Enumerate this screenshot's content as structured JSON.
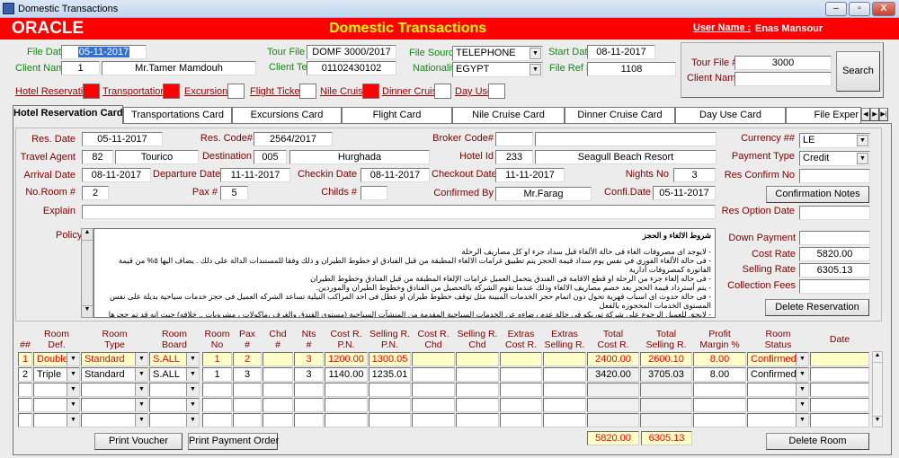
{
  "window": {
    "title": "Domestic Transactions",
    "min": "–",
    "max": "▫",
    "close": "X"
  },
  "header": {
    "logo": "ORACLE",
    "title": "Domestic Transactions",
    "user_label": "User Name :",
    "user_name": "Enas Mansour"
  },
  "file": {
    "file_date_label": "File Date",
    "file_date": "05-11-2017",
    "client_name_label": "Client Name",
    "client_id": "1",
    "client_name": "Mr.Tamer Mamdouh",
    "tour_file_label": "Tour File #",
    "tour_file": "DOMF 3000/2017",
    "client_tel_label": "Client Tel",
    "client_tel": "01102430102",
    "file_source_label": "File Source",
    "file_source": "TELEPHONE",
    "nationality_label": "Nationality",
    "nationality": "EGYPT",
    "start_date_label": "Start Date",
    "start_date": "08-11-2017",
    "file_ref_label": "File Ref #",
    "file_ref": "1108"
  },
  "search": {
    "tour_file_label": "Tour File #",
    "tour_file": "3000",
    "client_name_label": "Client Name",
    "client_name": "",
    "button": "Search"
  },
  "services": [
    {
      "label": "Hotel Reservation",
      "checked": true
    },
    {
      "label": "Transportations",
      "checked": true
    },
    {
      "label": "Excursions",
      "checked": false
    },
    {
      "label": "Flight Tickets",
      "checked": false
    },
    {
      "label": "Nile Cruise",
      "checked": true
    },
    {
      "label": "Dinner Cruise",
      "checked": false
    },
    {
      "label": "Day Use",
      "checked": false
    }
  ],
  "tabs": [
    "Hotel Reservation Card",
    "Transportations Card",
    "Excursions Card",
    "Flight Card",
    "Nile Cruise Card",
    "Dinner Cruise Card",
    "Day Use Card",
    "File Exper"
  ],
  "card": {
    "res_date_label": "Res. Date",
    "res_date": "05-11-2017",
    "res_code_label": "Res. Code#",
    "res_code": "2564/2017",
    "broker_label": "Broker Code#",
    "broker_code": "",
    "broker_name": "",
    "currency_label": "Currency ##",
    "currency": "LE",
    "agent_label": "Travel Agent",
    "agent_id": "82",
    "agent_name": "Tourico",
    "destination_label": "Destination",
    "destination_id": "005",
    "destination_name": "Hurghada",
    "hotel_label": "Hotel Id",
    "hotel_id": "233",
    "hotel_name": "Seagull Beach Resort",
    "payment_label": "Payment Type",
    "payment": "Credit",
    "arrival_label": "Arrival Date",
    "arrival": "08-11-2017",
    "departure_label": "Departure Date",
    "departure": "11-11-2017",
    "checkin_label": "Checkin Date",
    "checkin": "08-11-2017",
    "checkout_label": "Checkout Date",
    "checkout": "11-11-2017",
    "nights_label": "Nights No",
    "nights": "3",
    "confirm_no_label": "Res Confirm No",
    "confirm_no": "",
    "rooms_label": "No.Room #",
    "rooms": "2",
    "pax_label": "Pax #",
    "pax": "5",
    "childs_label": "Childs #",
    "childs": "",
    "confirmed_by_label": "Confirmed By",
    "confirmed_by": "Mr.Farag",
    "confi_date_label": "Confi.Date",
    "confi_date": "05-11-2017",
    "confirmation_notes": "Confirmation Notes",
    "explain_label": "Explain",
    "explain": "",
    "option_date_label": "Res Option Date",
    "option_date": "",
    "policy_label": "Policy",
    "policy": [
      "شروط الالغاء و الحجز",
      "",
      "- لايوجد اى مصروفات الغاء فى حالة الألغاء قبل سداد جزء او كل مصاريف الرحلة",
      "- فى حالة الألغاء الفوري في نفس يوم سداد قيمة الحجز يتم تطبيق غرامات الالغاء المطبقة من قبل الفنادق او خطوط الطيران و ذلك وفقا للمستندات الدالة على ذلك . يضاف اليها ٥% من قيمة الفاتورة كمصروفات أدارية",
      "- فى حاله إلغاء جزء من الرحلة او قطع الاقامة فى الفندق يتحمل العميل غرامات الإلغاء المطبقة من قبل الفنادق وخطوط الطيران",
      "- يتم أسترداد قيمة الحجز بعد خصم مصاريف الالغاء وذلك عندما تقوم الشركة بالتحصيل من الفنادق وخطوط الطيران والموردين.",
      "- فى حالة حدوث اى اسباب قهرية تحول دون اتمام حجز الخدمات المبينة مثل توقف خطوط طيران او عطل فى احد المراكب النيلية تساعد الشركه العميل فى حجز خدمات سياحية بديلة على نفس المستوى الخدمات المحجوزه بالفعل",
      "- لايحق للعميل الرجوع علي شركة توريكو فى حالة عدم رضاءه عن الخدمات السياحية المقدمة من المنشآت السياحية (مستوى الفندق والغرف ،ماكولات ، مشروبات .. خلافه) حيث انه قد تم حجزها بناء على طلبه و بعد اطلاعه"
    ],
    "down_payment_label": "Down Payment",
    "down_payment": "",
    "cost_rate_label": "Cost Rate",
    "cost_rate": "5820.00",
    "selling_rate_label": "Selling Rate",
    "selling_rate": "6305.13",
    "collection_fees_label": "Collection Fees",
    "collection_fees": "",
    "delete_reservation": "Delete Reservation"
  },
  "grid": {
    "headers": [
      "##",
      "Room\nDef.",
      "Room\nType",
      "Room\nBoard",
      "Room\nNo",
      "Pax\n#",
      "Chd\n#",
      "Nts\n#",
      "Cost R.\nP.N.",
      "Selling R.\nP.N.",
      "Cost R.\nChd",
      "Selling R.\nChd",
      "Extras\nCost R.",
      "Extras\nSelling R.",
      "Total\nCost R.",
      "Total\nSelling R.",
      "Profit\nMargin %",
      "Room\nStatus",
      "Date"
    ],
    "rows": [
      [
        "1",
        "Double",
        "Standard",
        "S.ALL",
        "1",
        "2",
        "",
        "3",
        "1200.00",
        "1300.05",
        "",
        "",
        "",
        "",
        "2400.00",
        "2600.10",
        "8.00",
        "Confirmed",
        ""
      ],
      [
        "2",
        "Triple",
        "Standard",
        "S.ALL",
        "1",
        "3",
        "",
        "3",
        "1140.00",
        "1235.01",
        "",
        "",
        "",
        "",
        "3420.00",
        "3705.03",
        "8.00",
        "Confirmed",
        ""
      ],
      [
        "",
        "",
        "",
        "",
        "",
        "",
        "",
        "",
        "",
        "",
        "",
        "",
        "",
        "",
        "",
        "",
        "",
        "",
        ""
      ],
      [
        "",
        "",
        "",
        "",
        "",
        "",
        "",
        "",
        "",
        "",
        "",
        "",
        "",
        "",
        "",
        "",
        "",
        "",
        ""
      ],
      [
        "",
        "",
        "",
        "",
        "",
        "",
        "",
        "",
        "",
        "",
        "",
        "",
        "",
        "",
        "",
        "",
        "",
        "",
        ""
      ]
    ],
    "total_cost": "5820.00",
    "total_selling": "6305.13"
  },
  "buttons": {
    "print_voucher": "Print Voucher",
    "print_payment_order": "Print Payment Order",
    "delete_room": "Delete Room"
  },
  "colors": {
    "header_red": "#ff0000",
    "title_yellow": "#ffff00",
    "label_maroon": "#800000",
    "label_green": "#138a13",
    "selected_row": "#ffffc8"
  }
}
